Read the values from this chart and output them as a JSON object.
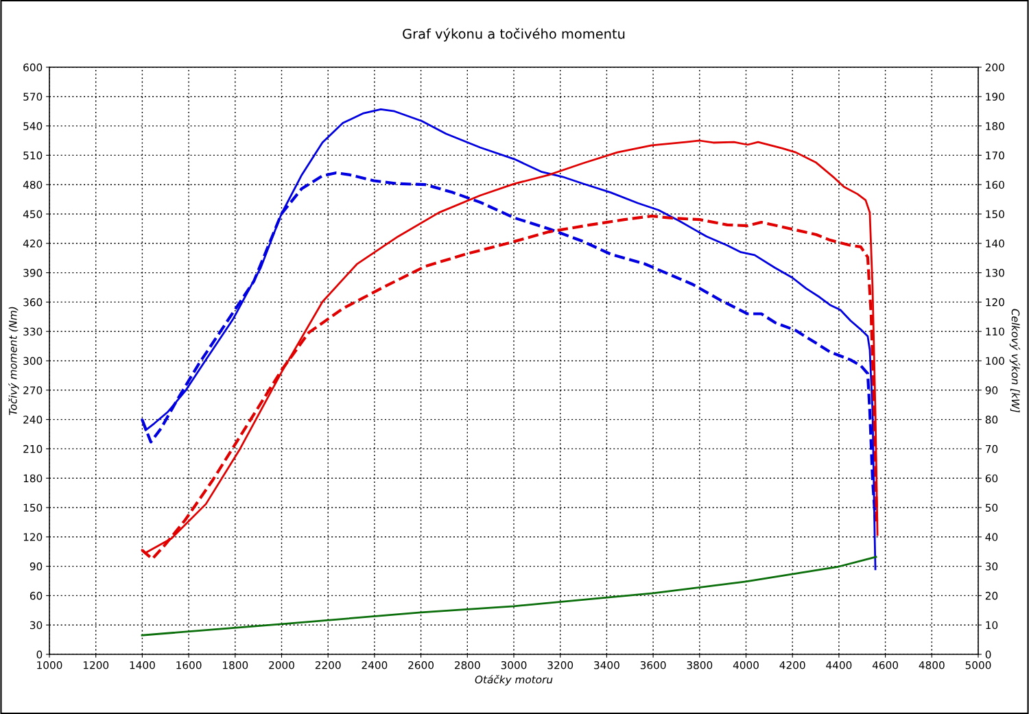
{
  "chart_data": {
    "type": "line",
    "title": "Graf výkonu a točivého momentu",
    "xlabel": "Otáčky motoru",
    "ylabel": "Točivý moment (Nm)",
    "y2label": "Celkový výkon [kW]",
    "xlim": [
      1000,
      5000
    ],
    "xticks": [
      1000,
      1200,
      1400,
      1600,
      1800,
      2000,
      2200,
      2400,
      2600,
      2800,
      3000,
      3200,
      3400,
      3600,
      3800,
      4000,
      4200,
      4400,
      4600,
      4800,
      5000
    ],
    "ylim": [
      0,
      600
    ],
    "yticks": [
      0,
      30,
      60,
      90,
      120,
      150,
      180,
      210,
      240,
      270,
      300,
      330,
      360,
      390,
      420,
      450,
      480,
      510,
      540,
      570,
      600
    ],
    "y2lim": [
      0,
      200
    ],
    "y2ticks": [
      0,
      10,
      20,
      30,
      40,
      50,
      60,
      70,
      80,
      90,
      100,
      110,
      120,
      130,
      140,
      150,
      160,
      170,
      180,
      190,
      200
    ],
    "grid": true,
    "series": [
      {
        "color": "#0000e0",
        "line_style": "solid",
        "x": [
          1399,
          1414,
          1452,
          1511,
          1585,
          1674,
          1792,
          1910,
          1999,
          2087,
          2176,
          2264,
          2353,
          2427,
          2486,
          2604,
          2708,
          2855,
          3003,
          3121,
          3210,
          3298,
          3417,
          3535,
          3623,
          3712,
          3830,
          3919,
          3978,
          4037,
          4125,
          4199,
          4258,
          4317,
          4362,
          4406,
          4450,
          4494,
          4524,
          4533,
          4545,
          4554,
          4557
        ],
        "values": [
          240,
          229,
          236,
          248,
          269,
          301,
          343,
          395,
          450,
          490,
          523,
          543,
          553,
          557,
          555,
          545,
          532,
          518,
          506,
          493,
          488,
          481,
          472,
          461,
          454,
          443,
          427,
          418,
          411,
          408,
          395,
          385,
          374,
          365,
          357,
          352,
          341,
          332,
          325,
          311,
          248,
          122,
          87
        ]
      },
      {
        "color": "#0000e0",
        "line_style": "dashed",
        "x": [
          1399,
          1437,
          1481,
          1555,
          1644,
          1762,
          1880,
          1999,
          2087,
          2176,
          2235,
          2294,
          2397,
          2500,
          2619,
          2737,
          2855,
          3003,
          3150,
          3298,
          3417,
          3564,
          3653,
          3771,
          3889,
          4007,
          4066,
          4125,
          4214,
          4302,
          4362,
          4450,
          4494,
          4524,
          4533,
          4545,
          4557
        ],
        "values": [
          240,
          217,
          231,
          262,
          297,
          339,
          381,
          450,
          476,
          489,
          492,
          490,
          484,
          481,
          480,
          472,
          462,
          446,
          435,
          422,
          409,
          399,
          390,
          378,
          362,
          348,
          348,
          339,
          331,
          318,
          309,
          301,
          295,
          287,
          248,
          178,
          136
        ]
      },
      {
        "color": "#e00000",
        "line_style": "solid",
        "axis": "y2",
        "x": [
          1399,
          1414,
          1526,
          1674,
          1821,
          1999,
          2176,
          2324,
          2501,
          2678,
          2855,
          3003,
          3150,
          3298,
          3446,
          3594,
          3741,
          3800,
          3859,
          3948,
          4007,
          4052,
          4155,
          4214,
          4302,
          4376,
          4421,
          4480,
          4515,
          4533,
          4545,
          4557,
          4566
        ],
        "values": [
          35.5,
          34.6,
          39.5,
          51.2,
          70.0,
          96.0,
          120.1,
          132.9,
          142.3,
          150.5,
          156.3,
          160.3,
          163.3,
          167.3,
          171.0,
          173.4,
          174.5,
          175.0,
          174.3,
          174.5,
          173.6,
          174.5,
          172.4,
          171.0,
          167.5,
          162.6,
          159.3,
          156.8,
          154.7,
          150.5,
          124.8,
          82.7,
          40.7
        ]
      },
      {
        "color": "#e00000",
        "line_style": "dashed",
        "axis": "y2",
        "x": [
          1399,
          1443,
          1496,
          1585,
          1703,
          1851,
          1999,
          2117,
          2264,
          2442,
          2619,
          2796,
          2973,
          3150,
          3328,
          3476,
          3594,
          3682,
          3800,
          3919,
          4007,
          4066,
          4184,
          4302,
          4362,
          4450,
          4494,
          4524,
          4539,
          4554,
          4563
        ],
        "values": [
          35.5,
          32.5,
          37.1,
          45.8,
          59.3,
          78.0,
          96.7,
          109.6,
          117.8,
          125.2,
          132.2,
          136.4,
          140.0,
          143.9,
          146.3,
          148.1,
          149.3,
          148.6,
          148.1,
          146.3,
          146.0,
          147.2,
          145.1,
          143.0,
          141.1,
          139.3,
          138.8,
          135.3,
          115.4,
          78.0,
          45.3
        ]
      },
      {
        "color": "#0a6e0a",
        "line_style": "solid",
        "axis": "y2",
        "x": [
          1399,
          2000,
          2600,
          3000,
          3600,
          4000,
          4400,
          4560
        ],
        "values": [
          6.5,
          10.3,
          14.3,
          16.4,
          20.8,
          24.8,
          29.9,
          33.2
        ]
      }
    ]
  }
}
